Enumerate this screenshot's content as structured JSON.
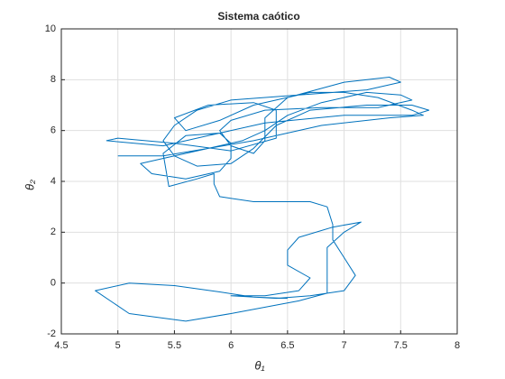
{
  "chart_data": {
    "type": "line",
    "title": "Sistema caótico",
    "xlabel": "θ₁",
    "ylabel": "θ₂",
    "xlim": [
      4.5,
      8
    ],
    "xticks": [
      4.5,
      5,
      5.5,
      6,
      6.5,
      7,
      7.5,
      8
    ],
    "ylim": [
      -2,
      10
    ],
    "yticks": [
      -2,
      0,
      2,
      4,
      6,
      8,
      10
    ],
    "grid": true,
    "series": [
      {
        "color": "#0072bd",
        "x": [
          5.0,
          5.4,
          5.8,
          6.1,
          6.3,
          6.5,
          6.8,
          7.2,
          7.5,
          7.6,
          7.3,
          6.8,
          6.3,
          6.0,
          5.9,
          6.0,
          6.2,
          6.3,
          6.3,
          6.5,
          7.0,
          7.4,
          7.5,
          7.2,
          6.6,
          6.0,
          5.7,
          5.5,
          5.4,
          5.5,
          5.7,
          6.0,
          6.2,
          6.4,
          6.7,
          7.2,
          7.6,
          7.75,
          7.6,
          7.0,
          6.3,
          5.8,
          5.4,
          4.9,
          5.0,
          5.5,
          6.0,
          6.4,
          6.4,
          6.2,
          5.8,
          5.5,
          5.6,
          5.9,
          6.2,
          6.7,
          7.0,
          7.3,
          7.6,
          7.7,
          7.4,
          6.8,
          6.2,
          5.8,
          5.5,
          5.2,
          5.3,
          5.6,
          5.9,
          6.0,
          6.0,
          5.9,
          5.6,
          5.4,
          5.45,
          5.7,
          5.85,
          5.85,
          5.9,
          6.2,
          6.7,
          6.85,
          6.9,
          6.9,
          7.0,
          7.1,
          7.0,
          6.7,
          6.4,
          6.0,
          6.3,
          6.6,
          6.7,
          6.5,
          6.5,
          6.6,
          6.9,
          7.15,
          7.0,
          6.85,
          6.85,
          6.85,
          6.6,
          6.0,
          5.6,
          5.1,
          4.8,
          5.1,
          5.5,
          5.9,
          6.2,
          6.5
        ],
        "values": [
          5.0,
          5.0,
          5.3,
          5.6,
          6.0,
          6.6,
          7.1,
          7.5,
          7.4,
          7.2,
          6.9,
          6.9,
          6.8,
          6.4,
          6.0,
          5.4,
          5.1,
          5.6,
          6.5,
          7.3,
          7.9,
          8.1,
          7.9,
          7.6,
          7.4,
          7.2,
          6.8,
          6.2,
          5.6,
          5.0,
          4.6,
          4.7,
          5.3,
          6.2,
          6.8,
          7.0,
          7.0,
          6.8,
          6.6,
          6.6,
          6.3,
          5.8,
          5.4,
          5.6,
          5.7,
          5.5,
          5.2,
          5.7,
          6.8,
          7.1,
          7.0,
          6.5,
          6.0,
          6.4,
          7.0,
          7.5,
          7.5,
          7.3,
          6.8,
          6.6,
          6.5,
          6.2,
          5.6,
          5.3,
          5.0,
          4.7,
          4.3,
          4.1,
          4.4,
          4.9,
          5.5,
          5.9,
          5.8,
          5.1,
          3.8,
          4.1,
          4.3,
          3.9,
          3.4,
          3.2,
          3.2,
          3.0,
          2.3,
          1.7,
          1.0,
          0.3,
          -0.3,
          -0.5,
          -0.6,
          -0.5,
          -0.5,
          -0.3,
          0.2,
          0.7,
          1.3,
          1.8,
          2.2,
          2.4,
          2.0,
          1.4,
          0.5,
          -0.4,
          -0.7,
          -1.2,
          -1.5,
          -1.2,
          -0.3,
          0.0,
          -0.1,
          -0.35,
          -0.55,
          -0.6
        ]
      }
    ]
  }
}
